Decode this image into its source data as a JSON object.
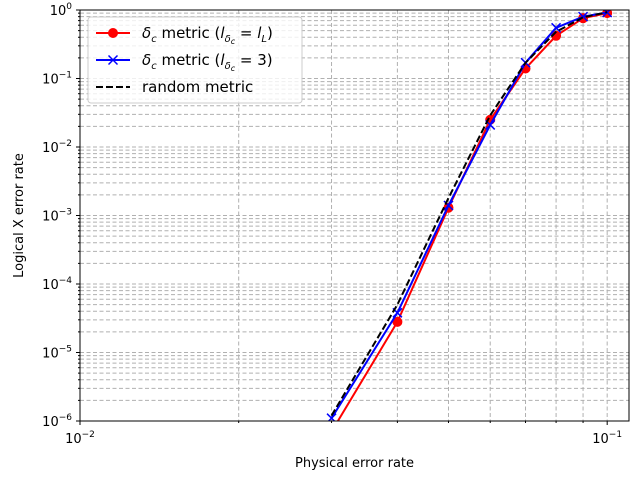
{
  "chart_data": {
    "type": "line",
    "xlabel": "Physical error rate",
    "ylabel": "Logical X error rate",
    "xscale": "log",
    "yscale": "log",
    "xlim": [
      0.01,
      0.11
    ],
    "ylim": [
      1e-06,
      1
    ],
    "grid": true,
    "legend_position": "top-left",
    "x_tick_labels": [
      {
        "value": 0.01,
        "base": "10",
        "exp": "−2"
      },
      {
        "value": 0.1,
        "base": "10",
        "exp": "−1"
      }
    ],
    "y_tick_labels": [
      {
        "value": 1e-06,
        "base": "10",
        "exp": "−6"
      },
      {
        "value": 1e-05,
        "base": "10",
        "exp": "−5"
      },
      {
        "value": 0.0001,
        "base": "10",
        "exp": "−4"
      },
      {
        "value": 0.001,
        "base": "10",
        "exp": "−3"
      },
      {
        "value": 0.01,
        "base": "10",
        "exp": "−2"
      },
      {
        "value": 0.1,
        "base": "10",
        "exp": "−1"
      },
      {
        "value": 1,
        "base": "10",
        "exp": "0"
      }
    ],
    "series": [
      {
        "key": "dc-il",
        "legend": {
          "prefix": "δ",
          "prefix_sub": "c",
          "mid": " metric (",
          "l": "l",
          "l_sub": "δ",
          "l_subsub": "c",
          "eq": " = ",
          "rhs": "l",
          "rhs_sub": "L",
          "suffix": ")"
        },
        "color": "#ff0000",
        "marker": "circle",
        "linestyle": "solid",
        "x": [
          0.03,
          0.04,
          0.05,
          0.06,
          0.07,
          0.08,
          0.09,
          0.1
        ],
        "y": [
          7e-07,
          2.8e-05,
          0.0013,
          0.025,
          0.14,
          0.42,
          0.76,
          0.9
        ]
      },
      {
        "key": "dc-3",
        "legend": {
          "prefix": "δ",
          "prefix_sub": "c",
          "mid": " metric (",
          "l": "l",
          "l_sub": "δ",
          "l_subsub": "c",
          "eq": " = ",
          "rhs": "3",
          "rhs_sub": "",
          "suffix": ")"
        },
        "color": "#0000ff",
        "marker": "x",
        "linestyle": "solid",
        "x": [
          0.03,
          0.04,
          0.05,
          0.06,
          0.07,
          0.08,
          0.09,
          0.1
        ],
        "y": [
          1.1e-06,
          3.8e-05,
          0.0014,
          0.021,
          0.17,
          0.55,
          0.8,
          0.92
        ]
      },
      {
        "key": "random",
        "legend": {
          "text": "random metric"
        },
        "color": "#000000",
        "marker": "none",
        "linestyle": "dashed",
        "x": [
          0.03,
          0.04,
          0.05,
          0.06,
          0.07,
          0.08,
          0.09,
          0.1
        ],
        "y": [
          1.2e-06,
          5e-05,
          0.0018,
          0.029,
          0.17,
          0.48,
          0.78,
          0.93
        ]
      }
    ]
  }
}
